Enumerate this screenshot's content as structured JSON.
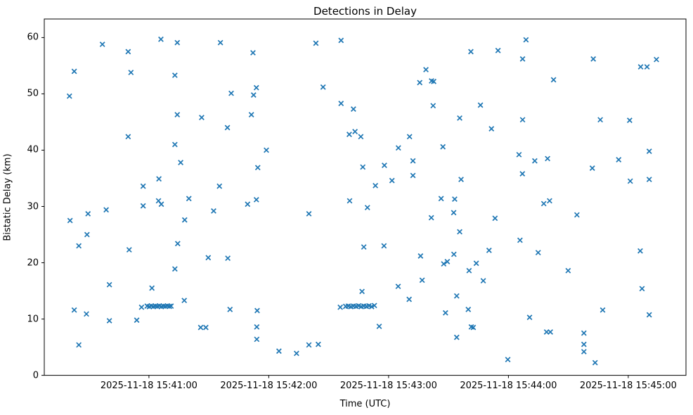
{
  "chart_data": {
    "type": "scatter",
    "title": "Detections in Delay",
    "xlabel": "Time (UTC)",
    "ylabel": "Bistatic Delay (km)",
    "legend": null,
    "grid": false,
    "marker": "x",
    "marker_color": "#1f77b4",
    "axis_color": "#000000",
    "x_unit": "seconds relative to 2025-11-18 15:41:00 UTC",
    "xlim": [
      -52.4,
      268.9
    ],
    "ylim": [
      0,
      63.3
    ],
    "x_ticks": [
      {
        "t": 0,
        "label": "2025-11-18 15:41:00"
      },
      {
        "t": 60,
        "label": "2025-11-18 15:42:00"
      },
      {
        "t": 120,
        "label": "2025-11-18 15:43:00"
      },
      {
        "t": 180,
        "label": "2025-11-18 15:44:00"
      },
      {
        "t": 240,
        "label": "2025-11-18 15:45:00"
      }
    ],
    "y_ticks": [
      {
        "v": 0,
        "label": "0"
      },
      {
        "v": 10,
        "label": "10"
      },
      {
        "v": 20,
        "label": "20"
      },
      {
        "v": 30,
        "label": "30"
      },
      {
        "v": 40,
        "label": "40"
      },
      {
        "v": 50,
        "label": "50"
      },
      {
        "v": 60,
        "label": "60"
      }
    ],
    "points": [
      [
        -23.3,
        58.8
      ],
      [
        -10.4,
        57.5
      ],
      [
        6.0,
        59.7
      ],
      [
        14.2,
        59.1
      ],
      [
        35.8,
        59.1
      ],
      [
        52.1,
        57.3
      ],
      [
        -37.4,
        54.0
      ],
      [
        -9.0,
        53.8
      ],
      [
        13.0,
        53.3
      ],
      [
        -39.8,
        49.6
      ],
      [
        41.2,
        50.1
      ],
      [
        53.8,
        51.1
      ],
      [
        52.4,
        49.8
      ],
      [
        14.2,
        46.3
      ],
      [
        26.4,
        45.8
      ],
      [
        51.3,
        46.3
      ],
      [
        39.3,
        44.0
      ],
      [
        -10.4,
        42.4
      ],
      [
        83.6,
        59.0
      ],
      [
        96.2,
        59.5
      ],
      [
        161.2,
        57.5
      ],
      [
        138.7,
        54.3
      ],
      [
        135.6,
        52.0
      ],
      [
        141.5,
        52.3
      ],
      [
        142.6,
        52.2
      ],
      [
        87.2,
        51.2
      ],
      [
        96.2,
        48.3
      ],
      [
        102.4,
        47.3
      ],
      [
        142.3,
        47.9
      ],
      [
        155.6,
        45.7
      ],
      [
        100.3,
        42.8
      ],
      [
        103.2,
        43.3
      ],
      [
        106.1,
        42.4
      ],
      [
        130.5,
        42.4
      ],
      [
        188.8,
        59.6
      ],
      [
        174.8,
        57.7
      ],
      [
        187.1,
        56.2
      ],
      [
        222.5,
        56.2
      ],
      [
        246.2,
        54.8
      ],
      [
        249.4,
        54.8
      ],
      [
        254.1,
        56.1
      ],
      [
        202.6,
        52.5
      ],
      [
        166.0,
        48.0
      ],
      [
        187.1,
        45.4
      ],
      [
        171.5,
        43.8
      ],
      [
        226.0,
        45.4
      ],
      [
        240.7,
        45.3
      ],
      [
        13.0,
        41.0
      ],
      [
        58.8,
        40.0
      ],
      [
        15.9,
        37.8
      ],
      [
        5.0,
        34.9
      ],
      [
        -2.9,
        33.6
      ],
      [
        35.3,
        33.6
      ],
      [
        4.8,
        31.0
      ],
      [
        6.2,
        30.4
      ],
      [
        -2.9,
        30.1
      ],
      [
        20.0,
        31.4
      ],
      [
        49.4,
        30.4
      ],
      [
        53.8,
        31.2
      ],
      [
        54.5,
        36.9
      ],
      [
        32.4,
        29.2
      ],
      [
        -30.5,
        28.7
      ],
      [
        -39.5,
        27.5
      ],
      [
        -21.4,
        29.4
      ],
      [
        17.9,
        27.6
      ],
      [
        -31.0,
        25.0
      ],
      [
        -35.1,
        23.0
      ],
      [
        -9.9,
        22.3
      ],
      [
        14.4,
        23.4
      ],
      [
        29.7,
        20.9
      ],
      [
        39.5,
        20.8
      ],
      [
        124.9,
        40.4
      ],
      [
        147.2,
        40.6
      ],
      [
        107.1,
        37.0
      ],
      [
        117.9,
        37.3
      ],
      [
        132.2,
        38.1
      ],
      [
        132.2,
        35.5
      ],
      [
        121.7,
        34.6
      ],
      [
        113.4,
        33.7
      ],
      [
        156.3,
        34.8
      ],
      [
        100.5,
        31.0
      ],
      [
        109.4,
        29.8
      ],
      [
        146.3,
        31.4
      ],
      [
        153.1,
        31.3
      ],
      [
        80.1,
        28.7
      ],
      [
        141.4,
        28.0
      ],
      [
        152.6,
        28.9
      ],
      [
        155.6,
        25.5
      ],
      [
        107.6,
        22.8
      ],
      [
        117.7,
        23.0
      ],
      [
        136.0,
        21.2
      ],
      [
        152.7,
        21.5
      ],
      [
        185.3,
        39.2
      ],
      [
        193.2,
        38.1
      ],
      [
        199.6,
        38.5
      ],
      [
        187.0,
        35.8
      ],
      [
        222.0,
        36.8
      ],
      [
        235.2,
        38.3
      ],
      [
        250.5,
        39.8
      ],
      [
        241.0,
        34.5
      ],
      [
        250.5,
        34.8
      ],
      [
        197.7,
        30.5
      ],
      [
        200.6,
        31.0
      ],
      [
        173.3,
        27.9
      ],
      [
        214.3,
        28.5
      ],
      [
        185.8,
        24.0
      ],
      [
        170.3,
        22.2
      ],
      [
        194.9,
        21.8
      ],
      [
        246.0,
        22.1
      ],
      [
        13.0,
        18.9
      ],
      [
        -19.8,
        16.1
      ],
      [
        1.5,
        15.5
      ],
      [
        17.7,
        13.3
      ],
      [
        -3.7,
        12.1
      ],
      [
        -0.9,
        12.3
      ],
      [
        0.2,
        12.2
      ],
      [
        1.2,
        12.35
      ],
      [
        2.2,
        12.2
      ],
      [
        3.2,
        12.3
      ],
      [
        4.2,
        12.25
      ],
      [
        5.2,
        12.35
      ],
      [
        6.2,
        12.2
      ],
      [
        7.2,
        12.3
      ],
      [
        8.2,
        12.25
      ],
      [
        9.2,
        12.35
      ],
      [
        10.2,
        12.25
      ],
      [
        11.1,
        12.3
      ],
      [
        -37.4,
        11.6
      ],
      [
        -31.3,
        10.9
      ],
      [
        -19.8,
        9.7
      ],
      [
        -6.1,
        9.8
      ],
      [
        40.6,
        11.7
      ],
      [
        54.2,
        11.5
      ],
      [
        25.9,
        8.5
      ],
      [
        28.5,
        8.5
      ],
      [
        54.0,
        8.6
      ],
      [
        -35.1,
        5.4
      ],
      [
        54.0,
        6.4
      ],
      [
        147.6,
        19.8
      ],
      [
        149.4,
        20.2
      ],
      [
        160.3,
        18.6
      ],
      [
        163.9,
        19.9
      ],
      [
        136.8,
        16.9
      ],
      [
        167.4,
        16.8
      ],
      [
        124.8,
        15.8
      ],
      [
        106.7,
        14.9
      ],
      [
        130.3,
        13.5
      ],
      [
        154.1,
        14.1
      ],
      [
        95.8,
        12.1
      ],
      [
        98.5,
        12.25
      ],
      [
        99.8,
        12.3
      ],
      [
        101.1,
        12.2
      ],
      [
        102.4,
        12.3
      ],
      [
        103.7,
        12.25
      ],
      [
        105.0,
        12.35
      ],
      [
        106.3,
        12.2
      ],
      [
        107.6,
        12.3
      ],
      [
        108.9,
        12.25
      ],
      [
        110.2,
        12.35
      ],
      [
        111.5,
        12.2
      ],
      [
        112.9,
        12.4
      ],
      [
        148.5,
        11.1
      ],
      [
        159.9,
        11.7
      ],
      [
        115.3,
        8.7
      ],
      [
        161.4,
        8.6
      ],
      [
        162.4,
        8.5
      ],
      [
        154.1,
        6.75
      ],
      [
        65.1,
        4.3
      ],
      [
        73.9,
        3.9
      ],
      [
        80.1,
        5.4
      ],
      [
        84.8,
        5.5
      ],
      [
        209.9,
        18.6
      ],
      [
        246.9,
        15.4
      ],
      [
        227.2,
        11.6
      ],
      [
        190.6,
        10.3
      ],
      [
        250.5,
        10.75
      ],
      [
        199.1,
        7.7
      ],
      [
        201.0,
        7.7
      ],
      [
        217.8,
        7.5
      ],
      [
        217.8,
        5.5
      ],
      [
        217.8,
        4.2
      ],
      [
        179.7,
        2.8
      ],
      [
        223.4,
        2.25
      ]
    ]
  }
}
